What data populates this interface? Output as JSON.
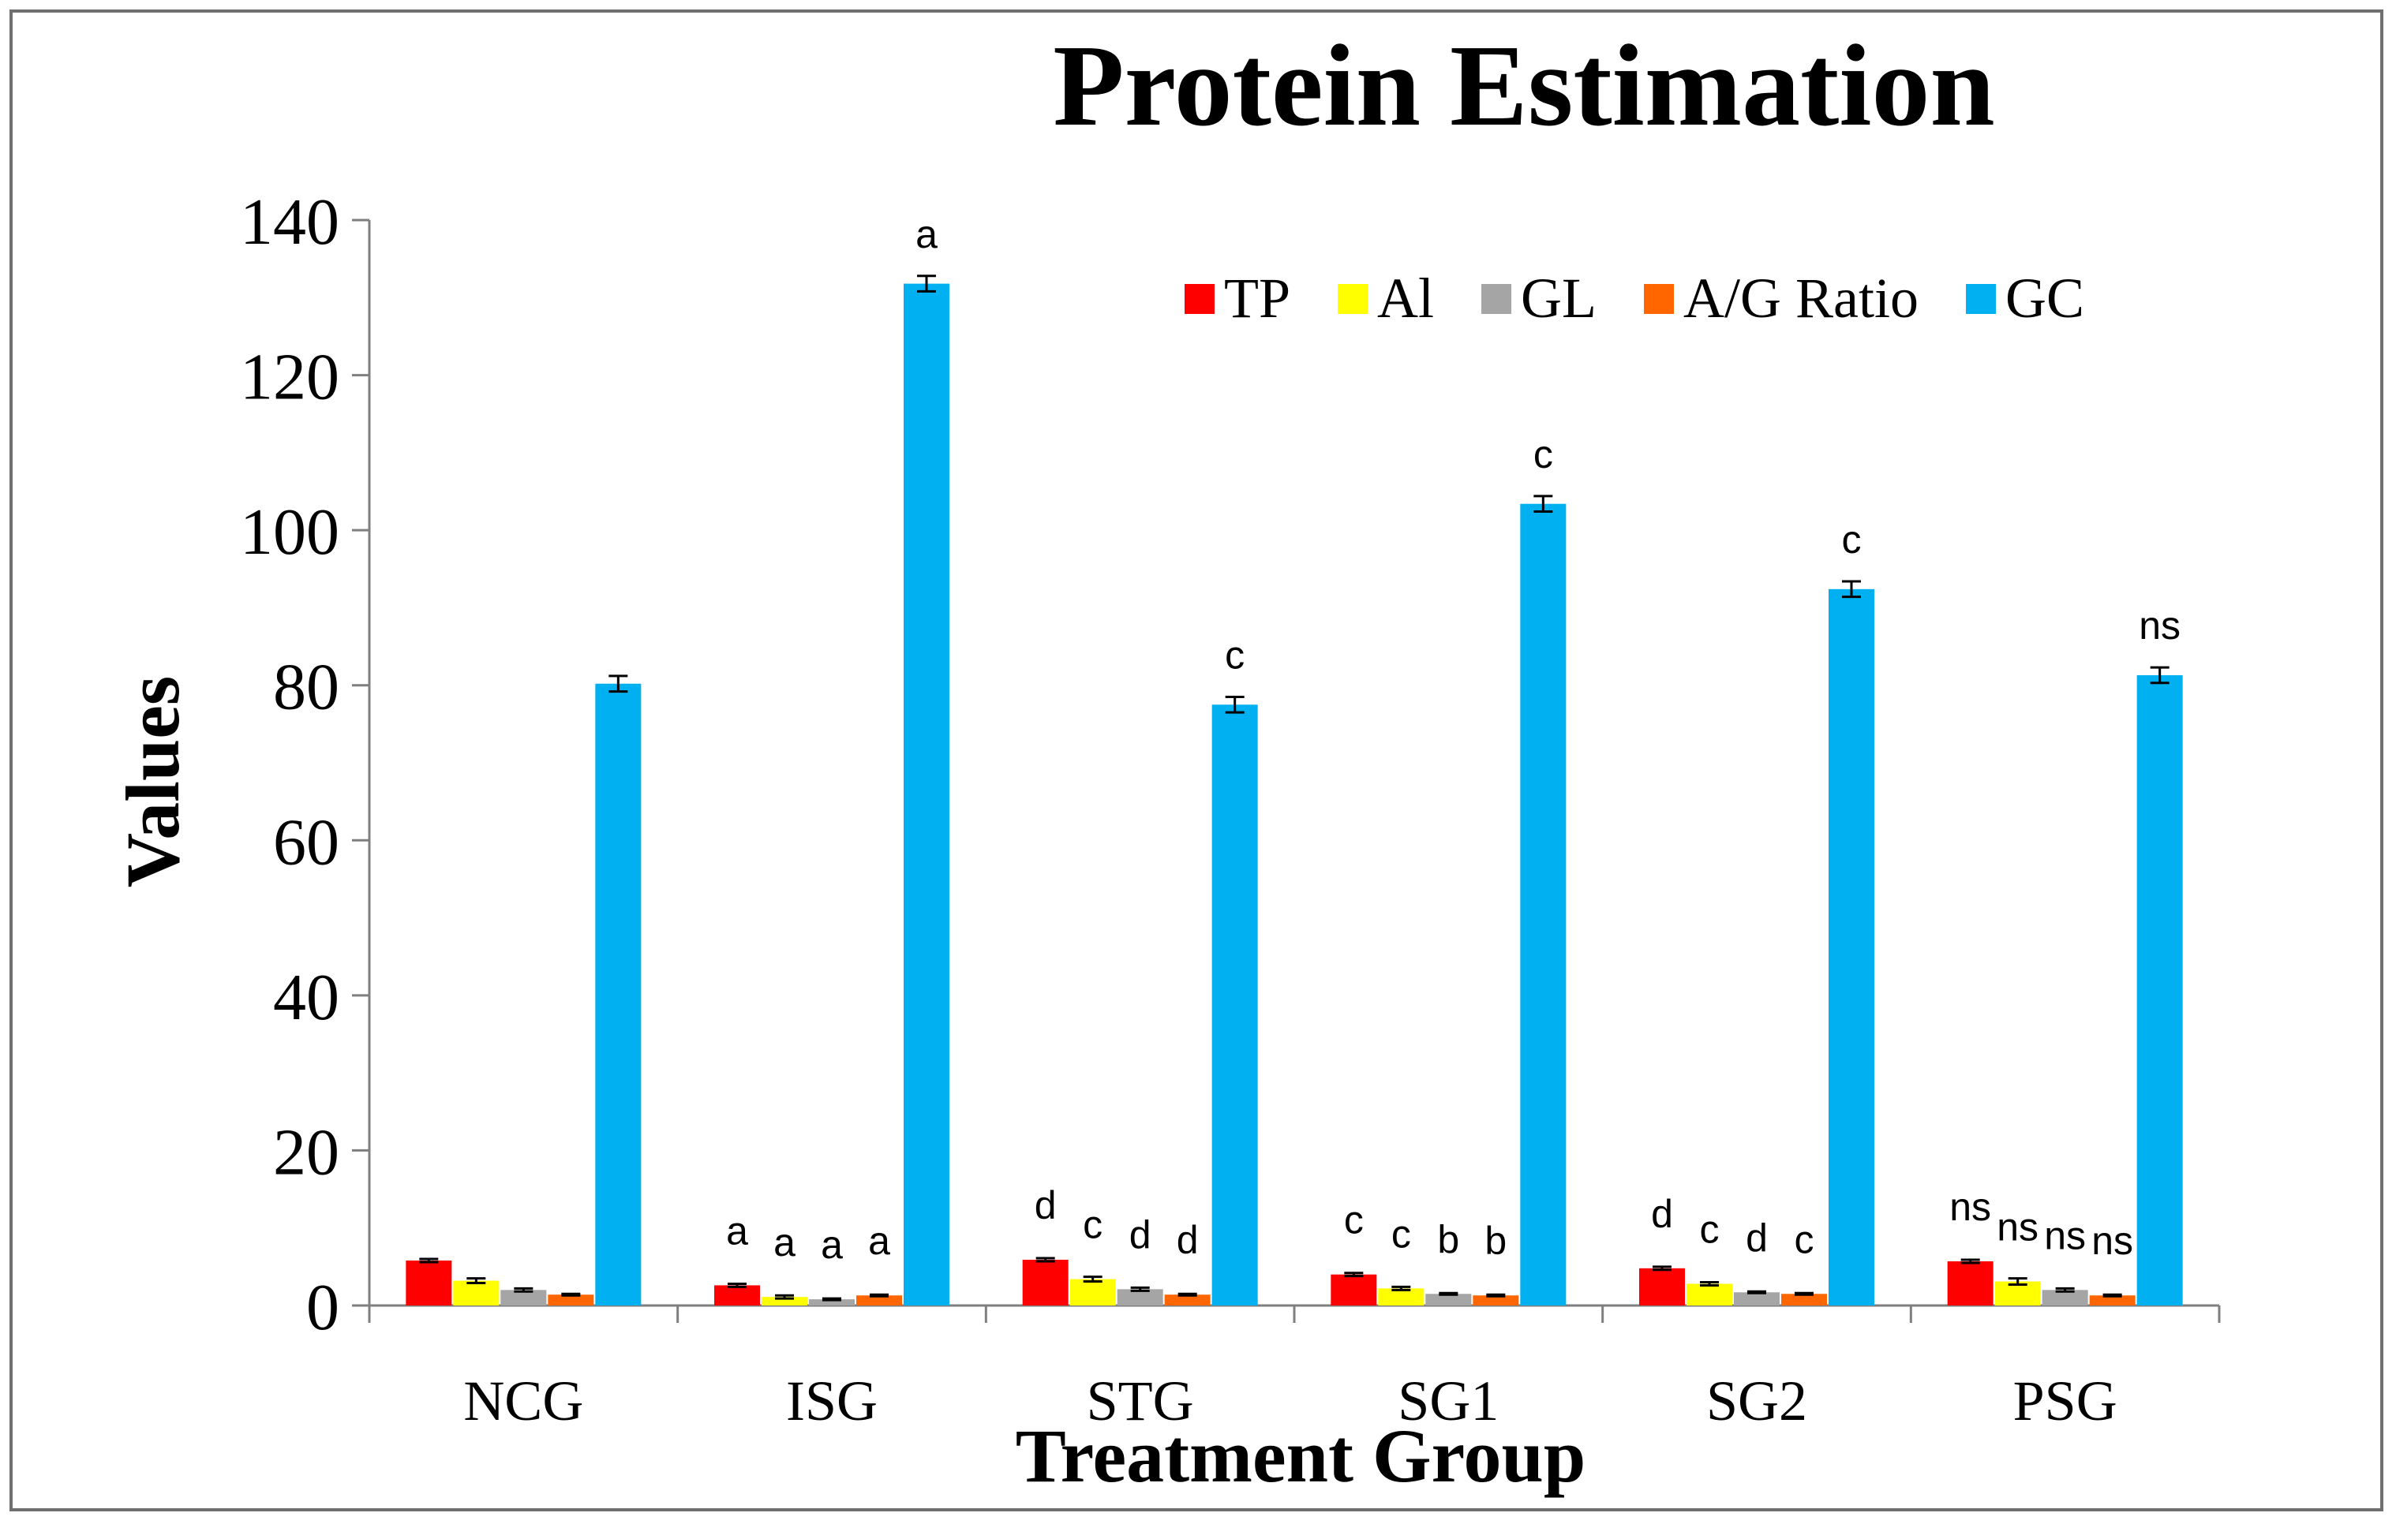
{
  "chart_data": {
    "type": "bar",
    "title": "Protein Estimation",
    "xlabel": "Treatment Group",
    "ylabel": "Values",
    "ylim": [
      0,
      140
    ],
    "yticks": [
      "0",
      "20",
      "40",
      "60",
      "80",
      "100",
      "120",
      "140"
    ],
    "grid": false,
    "legend_position": "top-right",
    "categories": [
      "NCG",
      "ISG",
      "STG",
      "SG1",
      "SG2",
      "PSG"
    ],
    "series": [
      {
        "name": "TP",
        "color": "#ff0000",
        "values": [
          5.8,
          2.6,
          5.9,
          4.0,
          4.8,
          5.7
        ],
        "errors": [
          0.2,
          0.2,
          0.2,
          0.2,
          0.2,
          0.2
        ],
        "labels": [
          "",
          "a",
          "d",
          "c",
          "d",
          "ns"
        ]
      },
      {
        "name": "Al",
        "color": "#ffff00",
        "values": [
          3.2,
          1.1,
          3.4,
          2.2,
          2.8,
          3.1
        ],
        "errors": [
          0.3,
          0.2,
          0.3,
          0.2,
          0.2,
          0.4
        ],
        "labels": [
          "",
          "a",
          "c",
          "c",
          "c",
          "ns"
        ]
      },
      {
        "name": "GL",
        "color": "#a5a5a5",
        "values": [
          2.0,
          0.8,
          2.1,
          1.5,
          1.7,
          2.0
        ],
        "errors": [
          0.2,
          0.1,
          0.2,
          0.1,
          0.1,
          0.2
        ],
        "labels": [
          "",
          "a",
          "d",
          "b",
          "d",
          "ns"
        ]
      },
      {
        "name": "A/G Ratio",
        "color": "#ff6600",
        "values": [
          1.4,
          1.3,
          1.4,
          1.3,
          1.5,
          1.3
        ],
        "errors": [
          0.1,
          0.1,
          0.1,
          0.1,
          0.1,
          0.1
        ],
        "labels": [
          "",
          "a",
          "d",
          "b",
          "c",
          "ns"
        ]
      },
      {
        "name": "GC",
        "color": "#00b0f0",
        "values": [
          80.2,
          131.8,
          77.5,
          103.4,
          92.4,
          81.3
        ],
        "errors": [
          1.0,
          1.0,
          1.0,
          1.0,
          1.0,
          1.0
        ],
        "labels": [
          "",
          "a",
          "c",
          "c",
          "c",
          "ns"
        ]
      }
    ]
  }
}
